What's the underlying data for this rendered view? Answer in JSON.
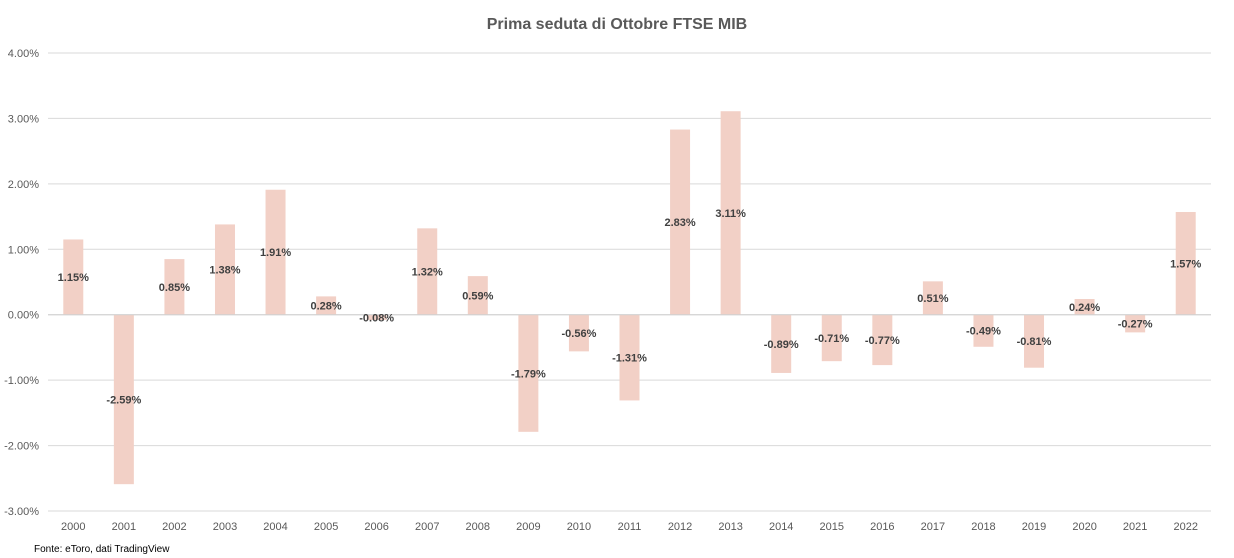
{
  "chart_data": {
    "type": "bar",
    "title": "Prima seduta di Ottobre FTSE MIB",
    "xlabel": "",
    "ylabel": "",
    "categories": [
      "2000",
      "2001",
      "2002",
      "2003",
      "2004",
      "2005",
      "2006",
      "2007",
      "2008",
      "2009",
      "2010",
      "2011",
      "2012",
      "2013",
      "2014",
      "2015",
      "2016",
      "2017",
      "2018",
      "2019",
      "2020",
      "2021",
      "2022"
    ],
    "values": [
      1.15,
      -2.59,
      0.85,
      1.38,
      1.91,
      0.28,
      -0.08,
      1.32,
      0.59,
      -1.79,
      -0.56,
      -1.31,
      2.83,
      3.11,
      -0.89,
      -0.71,
      -0.77,
      0.51,
      -0.49,
      -0.81,
      0.24,
      -0.27,
      1.57
    ],
    "data_labels": [
      "1.15%",
      "-2.59%",
      "0.85%",
      "1.38%",
      "1.91%",
      "0.28%",
      "-0.08%",
      "1.32%",
      "0.59%",
      "-1.79%",
      "-0.56%",
      "-1.31%",
      "2.83%",
      "3.11%",
      "-0.89%",
      "-0.71%",
      "-0.77%",
      "0.51%",
      "-0.49%",
      "-0.81%",
      "0.24%",
      "-0.27%",
      "1.57%"
    ],
    "ylim": [
      -3,
      4
    ],
    "yticks": [
      4,
      3,
      2,
      1,
      0,
      -1,
      -2,
      -3
    ],
    "ytick_labels": [
      "4.00%",
      "3.00%",
      "2.00%",
      "1.00%",
      "0.00%",
      "-1.00%",
      "-2.00%",
      "-3.00%"
    ],
    "grid": true,
    "legend": "none",
    "bar_color": "#f2d0c6",
    "grid_color": "#d9d9d9"
  },
  "source_note": "Fonte: eToro, dati TradingView"
}
